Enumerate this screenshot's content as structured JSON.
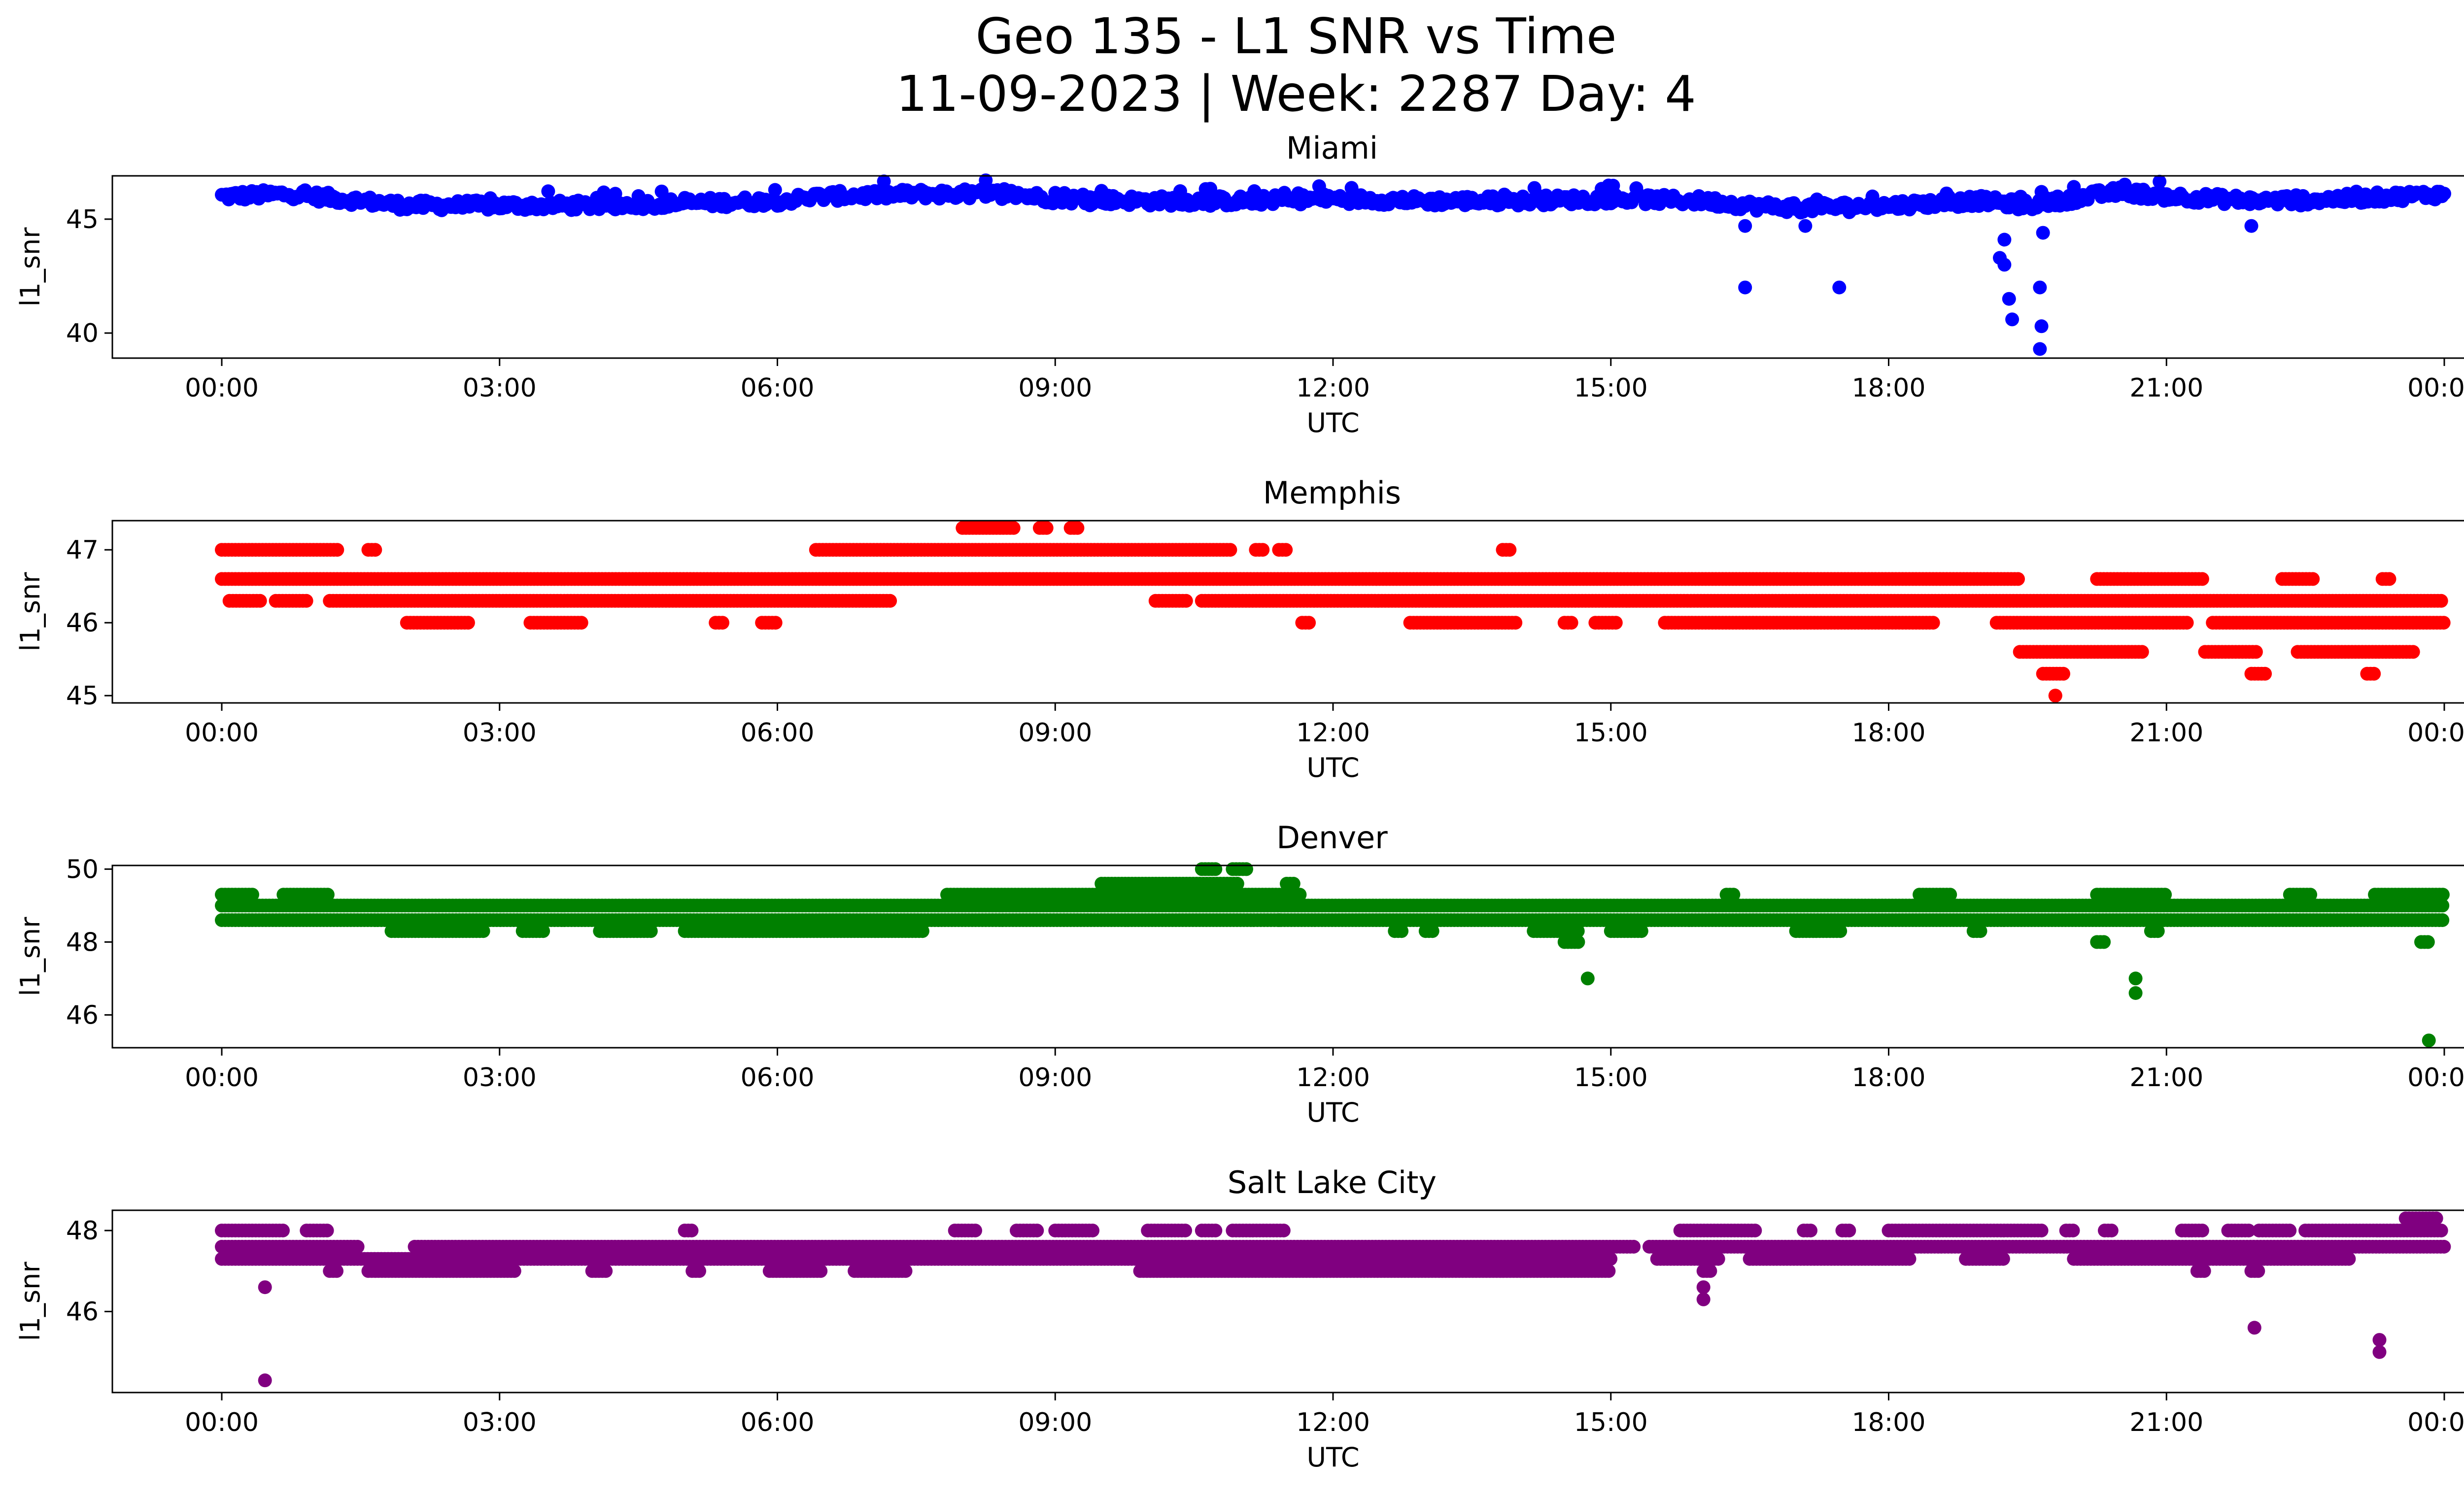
{
  "figure": {
    "title_line1": "Geo 135 - L1 SNR vs Time",
    "title_line2": "11-09-2023 | Week: 2287 Day: 4"
  },
  "chart_data": [
    {
      "type": "scatter",
      "title": "Miami",
      "xlabel": "UTC",
      "ylabel": "l1_snr",
      "color": "#0000ff",
      "xlim": [
        "23:35",
        "00:24 (+1 day)"
      ],
      "ylim": [
        38.9,
        46.9
      ],
      "xticks": [
        "00:00",
        "03:00",
        "06:00",
        "09:00",
        "12:00",
        "15:00",
        "18:00",
        "21:00",
        "00:00"
      ],
      "yticks": [
        40,
        45
      ],
      "grid": false,
      "baseline": [
        [
          "00:00",
          46.0
        ],
        [
          "00:45",
          46.1
        ],
        [
          "01:30",
          45.8
        ],
        [
          "02:00",
          45.6
        ],
        [
          "03:00",
          45.6
        ],
        [
          "04:00",
          45.6
        ],
        [
          "05:00",
          45.7
        ],
        [
          "06:00",
          45.8
        ],
        [
          "06:30",
          46.0
        ],
        [
          "07:30",
          46.1
        ],
        [
          "08:30",
          46.1
        ],
        [
          "09:00",
          45.9
        ],
        [
          "10:00",
          45.8
        ],
        [
          "11:00",
          45.8
        ],
        [
          "12:00",
          45.9
        ],
        [
          "13:00",
          45.8
        ],
        [
          "14:00",
          45.8
        ],
        [
          "15:00",
          45.9
        ],
        [
          "16:00",
          45.8
        ],
        [
          "16:30",
          45.6
        ],
        [
          "17:00",
          45.5
        ],
        [
          "18:00",
          45.6
        ],
        [
          "19:00",
          45.8
        ],
        [
          "19:30",
          45.6
        ],
        [
          "20:00",
          45.9
        ],
        [
          "20:30",
          46.2
        ],
        [
          "21:00",
          46.0
        ],
        [
          "22:00",
          45.8
        ],
        [
          "23:00",
          45.9
        ],
        [
          "24:00",
          46.1
        ]
      ],
      "outliers": [
        [
          "16:27",
          42.0
        ],
        [
          "16:27",
          44.7
        ],
        [
          "17:28",
          42.0
        ],
        [
          "17:06",
          44.7
        ],
        [
          "19:12",
          43.3
        ],
        [
          "19:15",
          43.0
        ],
        [
          "19:18",
          41.5
        ],
        [
          "19:20",
          40.6
        ],
        [
          "19:15",
          44.1
        ],
        [
          "19:38",
          42.0
        ],
        [
          "19:39",
          40.3
        ],
        [
          "19:38",
          39.3
        ],
        [
          "19:40",
          44.4
        ],
        [
          "21:55",
          44.7
        ]
      ]
    },
    {
      "type": "scatter",
      "title": "Memphis",
      "xlabel": "UTC",
      "ylabel": "l1_snr",
      "color": "#ff0000",
      "xlim": [
        "23:35",
        "00:24 (+1 day)"
      ],
      "ylim": [
        44.9,
        47.4
      ],
      "xticks": [
        "00:00",
        "03:00",
        "06:00",
        "09:00",
        "12:00",
        "15:00",
        "18:00",
        "21:00",
        "00:00"
      ],
      "yticks": [
        45,
        46,
        47
      ],
      "grid": false,
      "levels": [
        47.3,
        47.0,
        46.6,
        46.3,
        46.0,
        45.6,
        45.3,
        45.0
      ],
      "segments": [
        {
          "level": 47.0,
          "ranges": [
            [
              "00:00",
              "01:15"
            ],
            [
              "01:35",
              "01:40"
            ],
            [
              "06:25",
              "10:55"
            ],
            [
              "11:10",
              "11:15"
            ],
            [
              "11:25",
              "11:30"
            ],
            [
              "13:50",
              "13:55"
            ]
          ]
        },
        {
          "level": 46.6,
          "ranges": [
            [
              "00:00",
              "19:25"
            ],
            [
              "20:15",
              "21:25"
            ],
            [
              "22:15",
              "22:35"
            ],
            [
              "23:20",
              "23:25"
            ]
          ]
        },
        {
          "level": 46.3,
          "ranges": [
            [
              "00:05",
              "00:25"
            ],
            [
              "00:35",
              "00:55"
            ],
            [
              "01:10",
              "07:15"
            ],
            [
              "10:05",
              "10:25"
            ],
            [
              "10:35",
              "24:00"
            ]
          ]
        },
        {
          "level": 46.0,
          "ranges": [
            [
              "02:00",
              "02:40"
            ],
            [
              "03:20",
              "03:55"
            ],
            [
              "05:20",
              "05:25"
            ],
            [
              "05:50",
              "06:00"
            ],
            [
              "11:40",
              "11:45"
            ],
            [
              "12:50",
              "14:00"
            ],
            [
              "14:30",
              "14:35"
            ],
            [
              "14:50",
              "15:05"
            ],
            [
              "15:35",
              "18:30"
            ],
            [
              "19:10",
              "21:15"
            ],
            [
              "21:30",
              "24:00"
            ]
          ]
        },
        {
          "level": 45.6,
          "ranges": [
            [
              "19:25",
              "20:45"
            ],
            [
              "21:25",
              "22:00"
            ],
            [
              "22:25",
              "23:40"
            ]
          ]
        },
        {
          "level": 45.3,
          "ranges": [
            [
              "19:40",
              "19:55"
            ],
            [
              "21:55",
              "22:05"
            ],
            [
              "23:10",
              "23:15"
            ]
          ]
        },
        {
          "level": 47.3,
          "ranges": [
            [
              "08:00",
              "08:35"
            ],
            [
              "08:50",
              "08:55"
            ],
            [
              "09:10",
              "09:15"
            ]
          ]
        },
        {
          "level": 45.0,
          "ranges": [
            [
              "19:48",
              "19:50"
            ]
          ]
        }
      ]
    },
    {
      "type": "scatter",
      "title": "Denver",
      "xlabel": "UTC",
      "ylabel": "l1_snr",
      "color": "#008000",
      "xlim": [
        "23:35",
        "00:24 (+1 day)"
      ],
      "ylim": [
        45.1,
        50.1
      ],
      "xticks": [
        "00:00",
        "03:00",
        "06:00",
        "09:00",
        "12:00",
        "15:00",
        "18:00",
        "21:00",
        "00:00"
      ],
      "yticks": [
        46,
        48,
        50
      ],
      "grid": false,
      "levels": [
        50.0,
        49.6,
        49.3,
        49.0,
        48.6,
        48.3,
        48.0
      ],
      "segments": [
        {
          "level": 49.3,
          "ranges": [
            [
              "00:00",
              "00:20"
            ],
            [
              "00:40",
              "01:10"
            ],
            [
              "07:50",
              "09:00"
            ],
            [
              "09:00",
              "11:40"
            ],
            [
              "16:15",
              "16:20"
            ],
            [
              "18:20",
              "18:40"
            ],
            [
              "20:15",
              "21:00"
            ],
            [
              "22:20",
              "22:35"
            ],
            [
              "23:15",
              "24:00"
            ]
          ]
        },
        {
          "level": 49.6,
          "ranges": [
            [
              "09:30",
              "11:00"
            ],
            [
              "11:30",
              "11:35"
            ]
          ]
        },
        {
          "level": 50.0,
          "ranges": [
            [
              "10:35",
              "10:45"
            ],
            [
              "10:55",
              "11:05"
            ]
          ]
        },
        {
          "level": 49.0,
          "ranges": [
            [
              "00:00",
              "24:00"
            ]
          ]
        },
        {
          "level": 48.6,
          "ranges": [
            [
              "00:00",
              "24:00"
            ]
          ]
        },
        {
          "level": 48.3,
          "ranges": [
            [
              "01:50",
              "02:50"
            ],
            [
              "03:15",
              "03:30"
            ],
            [
              "04:05",
              "04:40"
            ],
            [
              "05:00",
              "07:35"
            ],
            [
              "12:40",
              "12:45"
            ],
            [
              "13:00",
              "13:05"
            ],
            [
              "14:10",
              "14:40"
            ],
            [
              "15:00",
              "15:20"
            ],
            [
              "17:00",
              "17:30"
            ],
            [
              "18:55",
              "19:00"
            ],
            [
              "20:50",
              "20:55"
            ]
          ]
        },
        {
          "level": 48.0,
          "ranges": [
            [
              "14:30",
              "14:40"
            ],
            [
              "20:15",
              "20:20"
            ],
            [
              "23:45",
              "23:50"
            ]
          ]
        }
      ],
      "outliers": [
        [
          "14:45",
          47.0
        ],
        [
          "20:40",
          47.0
        ],
        [
          "20:40",
          46.6
        ],
        [
          "23:50",
          45.3
        ],
        [
          "11:25",
          48.6
        ]
      ]
    },
    {
      "type": "scatter",
      "title": "Salt Lake City",
      "xlabel": "UTC",
      "ylabel": "l1_snr",
      "color": "#800080",
      "xlim": [
        "23:35",
        "00:24 (+1 day)"
      ],
      "ylim": [
        44.0,
        48.5
      ],
      "xticks": [
        "00:00",
        "03:00",
        "06:00",
        "09:00",
        "12:00",
        "15:00",
        "18:00",
        "21:00",
        "00:00"
      ],
      "yticks": [
        46,
        48
      ],
      "grid": false,
      "levels": [
        48.3,
        48.0,
        47.6,
        47.3,
        47.0
      ],
      "segments": [
        {
          "level": 48.0,
          "ranges": [
            [
              "00:00",
              "00:40"
            ],
            [
              "00:55",
              "01:10"
            ],
            [
              "05:00",
              "05:05"
            ],
            [
              "07:55",
              "08:10"
            ],
            [
              "08:35",
              "08:50"
            ],
            [
              "09:00",
              "09:25"
            ],
            [
              "10:00",
              "10:25"
            ],
            [
              "10:35",
              "10:45"
            ],
            [
              "10:55",
              "11:30"
            ],
            [
              "15:45",
              "16:35"
            ],
            [
              "17:05",
              "17:10"
            ],
            [
              "17:30",
              "17:35"
            ],
            [
              "18:00",
              "19:40"
            ],
            [
              "19:55",
              "20:00"
            ],
            [
              "20:20",
              "20:25"
            ],
            [
              "21:10",
              "21:25"
            ],
            [
              "21:40",
              "21:55"
            ],
            [
              "22:00",
              "22:20"
            ],
            [
              "22:30",
              "24:00"
            ]
          ]
        },
        {
          "level": 47.6,
          "ranges": [
            [
              "00:00",
              "01:30"
            ],
            [
              "02:05",
              "15:15"
            ],
            [
              "15:25",
              "24:00"
            ]
          ]
        },
        {
          "level": 47.3,
          "ranges": [
            [
              "00:00",
              "15:00"
            ],
            [
              "15:30",
              "16:10"
            ],
            [
              "16:30",
              "18:15"
            ],
            [
              "18:50",
              "19:15"
            ],
            [
              "20:00",
              "23:00"
            ]
          ]
        },
        {
          "level": 47.0,
          "ranges": [
            [
              "01:10",
              "01:15"
            ],
            [
              "01:35",
              "03:10"
            ],
            [
              "04:00",
              "04:10"
            ],
            [
              "05:05",
              "05:10"
            ],
            [
              "05:55",
              "06:30"
            ],
            [
              "06:50",
              "07:25"
            ],
            [
              "09:55",
              "15:00"
            ],
            [
              "16:00",
              "16:05"
            ],
            [
              "21:20",
              "21:25"
            ],
            [
              "21:55",
              "22:00"
            ]
          ]
        },
        {
          "level": 48.3,
          "ranges": [
            [
              "23:35",
              "23:55"
            ]
          ]
        }
      ],
      "outliers": [
        [
          "00:28",
          46.6
        ],
        [
          "00:28",
          44.3
        ],
        [
          "16:00",
          46.6
        ],
        [
          "16:00",
          46.3
        ],
        [
          "21:57",
          45.6
        ],
        [
          "23:18",
          45.3
        ],
        [
          "23:18",
          45.0
        ]
      ]
    }
  ]
}
